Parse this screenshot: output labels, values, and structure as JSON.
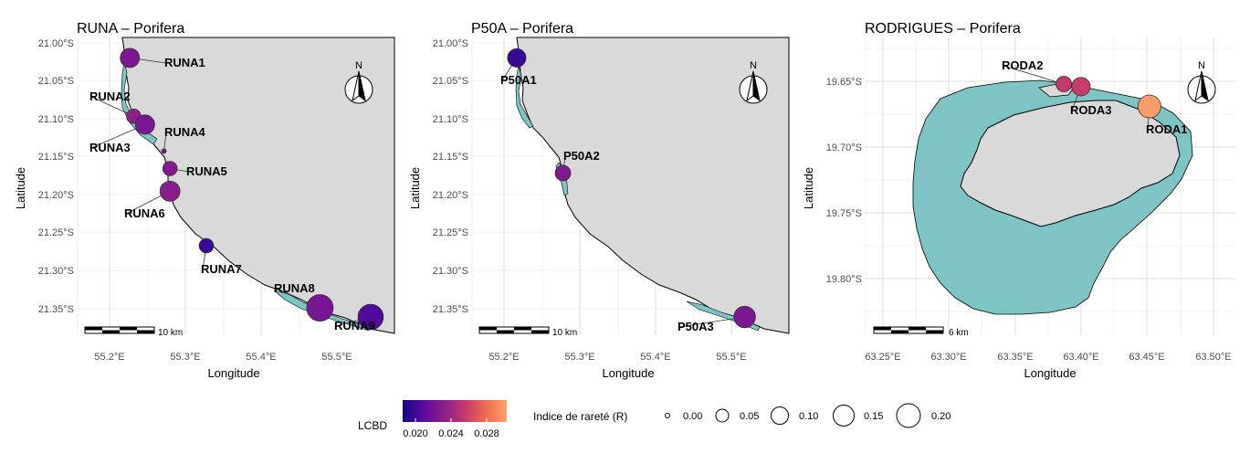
{
  "panels": [
    {
      "id": "runa",
      "title": "RUNA – Porifera",
      "xlabel": "Longitude",
      "ylabel": "Latitude",
      "xticks": [
        "55.2°E",
        "55.3°E",
        "55.4°E",
        "55.5°E"
      ],
      "yticks": [
        "21.00°S",
        "21.05°S",
        "21.10°S",
        "21.15°S",
        "21.20°S",
        "21.25°S",
        "21.30°S",
        "21.35°S"
      ],
      "scalebar": "10 km",
      "north": "N",
      "sites": [
        {
          "label": "RUNA1",
          "lon": 55.227,
          "lat": -21.02,
          "lcbd": 0.0228,
          "r": 0.09
        },
        {
          "label": "RUNA2",
          "lon": 55.232,
          "lat": -21.097,
          "lcbd": 0.0238,
          "r": 0.04
        },
        {
          "label": "RUNA3",
          "lon": 55.247,
          "lat": -21.108,
          "lcbd": 0.0228,
          "r": 0.09
        },
        {
          "label": "RUNA4",
          "lon": 55.272,
          "lat": -21.143,
          "lcbd": 0.023,
          "r": 0.0
        },
        {
          "label": "RUNA5",
          "lon": 55.28,
          "lat": -21.166,
          "lcbd": 0.0232,
          "r": 0.04
        },
        {
          "label": "RUNA6",
          "lon": 55.28,
          "lat": -21.196,
          "lcbd": 0.0236,
          "r": 0.1
        },
        {
          "label": "RUNA7",
          "lon": 55.328,
          "lat": -21.268,
          "lcbd": 0.02,
          "r": 0.04
        },
        {
          "label": "RUNA8",
          "lon": 55.478,
          "lat": -21.35,
          "lcbd": 0.0226,
          "r": 0.2
        },
        {
          "label": "RUNA9",
          "lon": 55.545,
          "lat": -21.362,
          "lcbd": 0.0208,
          "r": 0.18
        }
      ]
    },
    {
      "id": "p50a",
      "title": "P50A – Porifera",
      "xlabel": "Longitude",
      "ylabel": "Latitude",
      "xticks": [
        "55.2°E",
        "55.3°E",
        "55.4°E",
        "55.5°E"
      ],
      "yticks": [
        "21.00°S",
        "21.05°S",
        "21.10°S",
        "21.15°S",
        "21.20°S",
        "21.25°S",
        "21.30°S",
        "21.35°S"
      ],
      "scalebar": "10 km",
      "north": "N",
      "sites": [
        {
          "label": "P50A1",
          "lon": 55.217,
          "lat": -21.02,
          "lcbd": 0.02,
          "r": 0.08
        },
        {
          "label": "P50A2",
          "lon": 55.278,
          "lat": -21.172,
          "lcbd": 0.023,
          "r": 0.05
        },
        {
          "label": "P50A3",
          "lon": 55.518,
          "lat": -21.362,
          "lcbd": 0.0228,
          "r": 0.12
        }
      ]
    },
    {
      "id": "rodrigues",
      "title": "RODRIGUES – Porifera",
      "xlabel": "Longitude",
      "ylabel": "Latitude",
      "xticks": [
        "63.25°E",
        "63.30°E",
        "63.35°E",
        "63.40°E",
        "63.45°E",
        "63.50°E"
      ],
      "yticks": [
        "19.65°S",
        "19.70°S",
        "19.75°S",
        "19.80°S"
      ],
      "scalebar": "6 km",
      "north": "N",
      "sites": [
        {
          "label": "RODA1",
          "lon": 63.475,
          "lat": -19.669,
          "lcbd": 0.0312,
          "r": 0.14
        },
        {
          "label": "RODA2",
          "lon": 63.4,
          "lat": -19.652,
          "lcbd": 0.0262,
          "r": 0.05
        },
        {
          "label": "RODA3",
          "lon": 63.415,
          "lat": -19.654,
          "lcbd": 0.0264,
          "r": 0.08
        }
      ]
    }
  ],
  "legend": {
    "lcbd_title": "LCBD",
    "lcbd_ticks": [
      "0.020",
      "0.024",
      "0.028"
    ],
    "lcbd_colors": [
      "#0d0887",
      "#5b0aa0",
      "#8b1f89",
      "#c13b6e",
      "#f06b50",
      "#fca06a"
    ],
    "size_title": "Indice de rareté (R)",
    "size_items": [
      "0.00",
      "0.05",
      "0.10",
      "0.15",
      "0.20"
    ]
  },
  "colors": {
    "land": "#d9d9d9",
    "reef": "#7fc4c4",
    "grid": "#e5e5e5"
  }
}
